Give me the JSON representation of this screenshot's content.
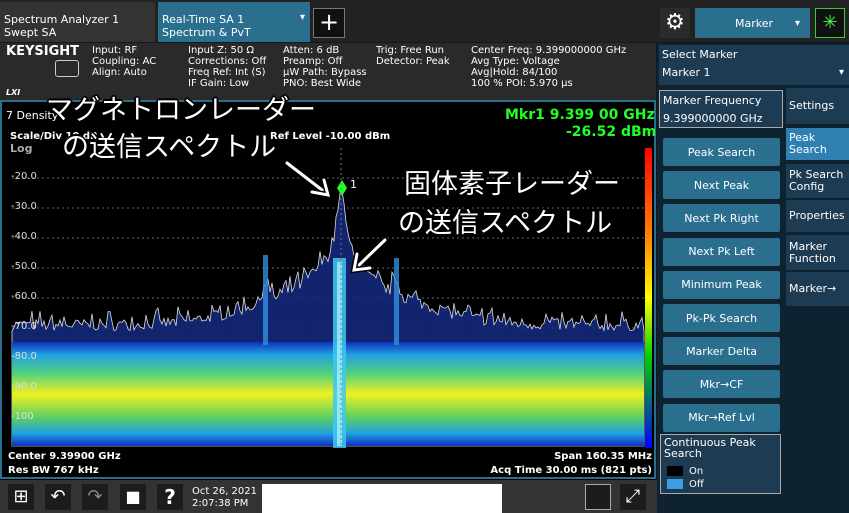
{
  "tabs": [
    {
      "line1": "Spectrum Analyzer 1",
      "line2": "Swept SA"
    },
    {
      "line1": "Real-Time SA 1",
      "line2": "Spectrum & PvT"
    }
  ],
  "menu": "Marker",
  "brand": "KEYSIGHT",
  "info": [
    [
      "Input: RF",
      "Coupling: AC",
      "Align: Auto"
    ],
    [
      "Input Z: 50 Ω",
      "Corrections: Off",
      "Freq Ref: Int (S)",
      "IF Gain: Low"
    ],
    [
      "Atten: 6 dB",
      "Preamp: Off",
      "µW Path: Bypass",
      "PNO: Best Wide"
    ],
    [
      "Trig: Free Run",
      "Detector: Peak"
    ],
    [
      "Center Freq: 9.399000000 GHz",
      "Avg Type: Voltage",
      "Avg|Hold: 84/100",
      "100 % POI: 5.970 µs"
    ]
  ],
  "lxi": "LXI",
  "plot": {
    "trace": "7 Density",
    "marker_label": "Mkr1  9.399 00 GHz",
    "marker_value": "-26.52 dBm",
    "scale": "Scale/Div 10 dB",
    "ref_level": "Ref Level -10.00 dBm",
    "scale_type": "Log",
    "marker_number": "1",
    "y_labels": [
      "-20.0",
      "-30.0",
      "-40.0",
      "-50.0",
      "-60.0",
      "-70.0",
      "-80.0",
      "-90.0",
      "-100"
    ],
    "center": "Center 9.39900 GHz",
    "span": "Span 160.35 MHz",
    "res_bw": "Res BW 767 kHz",
    "acq_time": "Acq Time 30.00 ms (821 pts)"
  },
  "annotations": [
    {
      "lines": [
        "マグネトロンレーダー",
        "の送信スペクトル"
      ]
    },
    {
      "lines": [
        "固体素子レーダー",
        "の送信スペクトル"
      ]
    }
  ],
  "panel": {
    "select_marker": "Select Marker",
    "marker": "Marker 1",
    "frequency_label": "Marker Frequency",
    "frequency_value": "9.399000000 GHz",
    "buttons": [
      "Peak Search",
      "Next Peak",
      "Next Pk Right",
      "Next Pk Left",
      "Minimum Peak",
      "Pk-Pk Search",
      "Marker Delta",
      "Mkr→CF",
      "Mkr→Ref Lvl"
    ],
    "continuous": {
      "label": "Continuous Peak Search",
      "on": "On",
      "off": "Off"
    },
    "tabs": [
      "Settings",
      "Peak Search",
      "Pk Search Config",
      "Properties",
      "Marker Function",
      "Marker→"
    ]
  },
  "taskbar": {
    "date": "Oct 26, 2021",
    "time": "2:07:38 PM"
  }
}
